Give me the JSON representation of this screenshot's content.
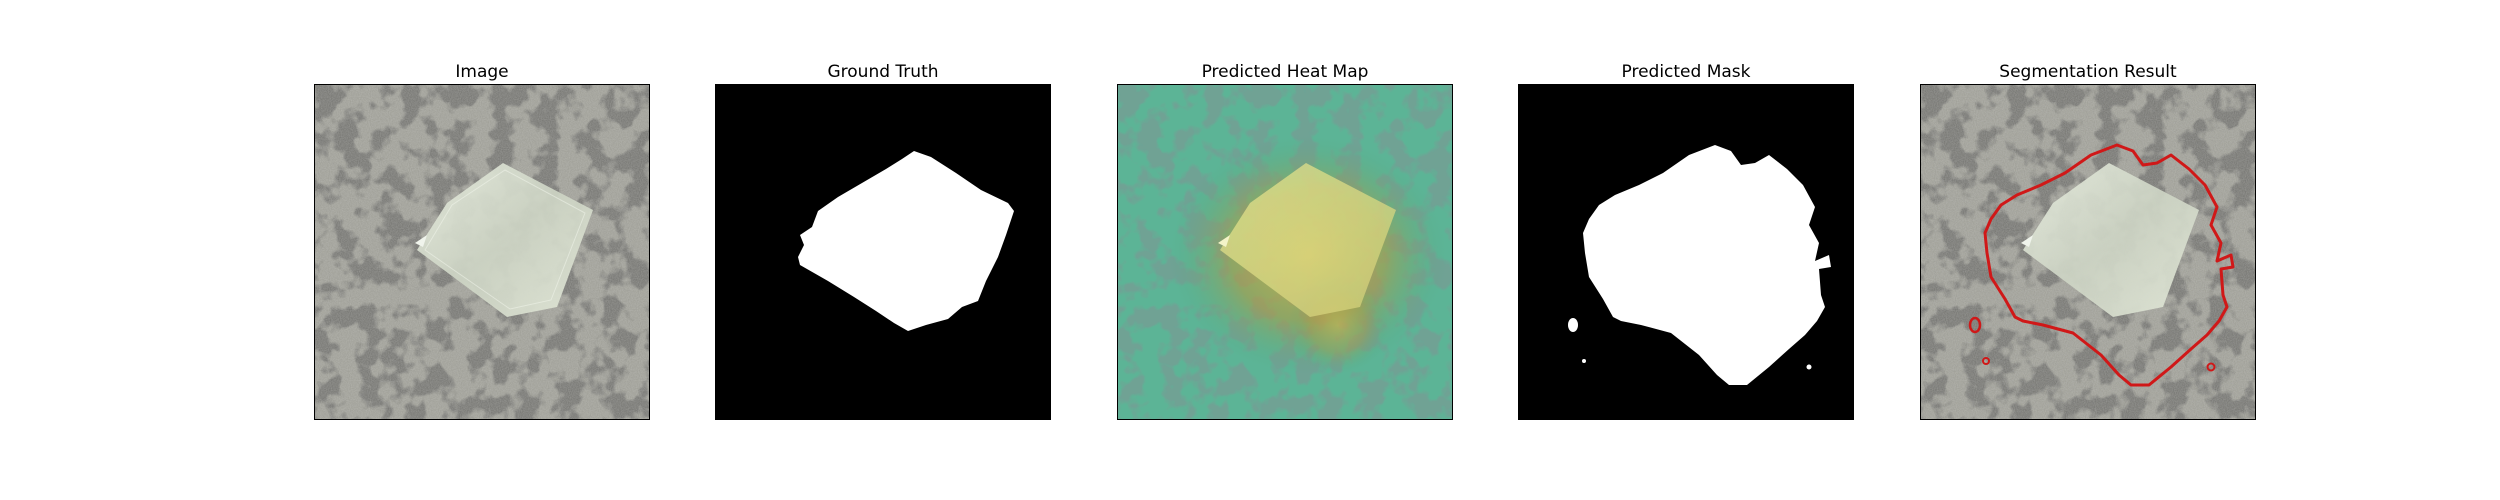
{
  "figure": {
    "panels": [
      {
        "title": "Image",
        "icon": "stone-texture-image"
      },
      {
        "title": "Ground Truth",
        "icon": "binary-mask"
      },
      {
        "title": "Predicted Heat Map",
        "icon": "heatmap-overlay"
      },
      {
        "title": "Predicted Mask",
        "icon": "binary-mask"
      },
      {
        "title": "Segmentation Result",
        "icon": "contour-overlay"
      }
    ],
    "colors": {
      "background": "#ffffff",
      "mask_fg": "#ffffff",
      "mask_bg": "#000000",
      "contour": "#d01818",
      "heat_base": "#4aa886",
      "heat_hot": "#d8c050",
      "texture_light": "#9a9a92",
      "texture_dark": "#2a2a28",
      "crystal": "#dfe6d6"
    }
  }
}
